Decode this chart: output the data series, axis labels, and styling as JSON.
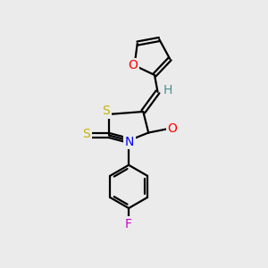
{
  "background_color": "#ebebeb",
  "bond_color": "#000000",
  "atom_colors": {
    "S": "#c8b400",
    "O": "#ff0000",
    "N": "#0000ff",
    "F": "#cc00cc",
    "H": "#4a9090",
    "C": "#000000"
  },
  "font_size": 10,
  "figsize": [
    3.0,
    3.0
  ],
  "dpi": 100,
  "lw": 1.6
}
